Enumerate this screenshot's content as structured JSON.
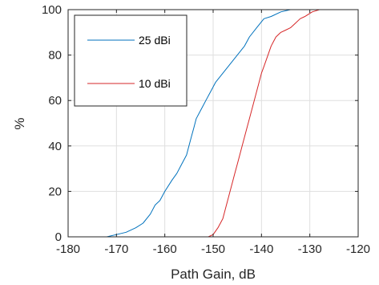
{
  "chart_data": {
    "type": "line",
    "title": "",
    "xlabel": "Path Gain, dB",
    "ylabel": "%",
    "xlim": [
      -180,
      -120
    ],
    "ylim": [
      0,
      100
    ],
    "xticks": [
      -180,
      -170,
      -160,
      -150,
      -140,
      -130,
      -120
    ],
    "yticks": [
      0,
      20,
      40,
      60,
      80,
      100
    ],
    "grid": true,
    "legend_position": "top-left",
    "series": [
      {
        "name": "25 dBi",
        "color": "#0072BD",
        "x": [
          -172,
          -170,
          -168,
          -166,
          -164.5,
          -163,
          -162,
          -161,
          -160,
          -158.5,
          -157.5,
          -156.5,
          -155.5,
          -155,
          -154.5,
          -154,
          -153.5,
          -152.5,
          -151.5,
          -150.5,
          -149.5,
          -148,
          -146.5,
          -145,
          -143.5,
          -142.5,
          -141,
          -139.5,
          -138,
          -136,
          -134,
          -132
        ],
        "y": [
          0,
          1,
          2,
          4,
          6,
          10,
          14,
          16,
          20,
          25,
          28,
          32,
          36,
          40,
          44,
          48,
          52,
          56,
          60,
          64,
          68,
          72,
          76,
          80,
          84,
          88,
          92,
          96,
          97,
          99,
          100,
          100
        ]
      },
      {
        "name": "10 dBi",
        "color": "#D62728",
        "x": [
          -151,
          -150,
          -149,
          -148,
          -147.5,
          -147,
          -146.5,
          -146,
          -145.5,
          -145,
          -144.5,
          -144,
          -143.5,
          -143,
          -142.5,
          -142,
          -141.5,
          -141,
          -140.5,
          -140,
          -139.5,
          -139,
          -138.5,
          -138,
          -137.5,
          -137,
          -136,
          -135,
          -134,
          -133,
          -132,
          -131,
          -129.5,
          -128,
          -127
        ],
        "y": [
          0,
          1,
          4,
          8,
          12,
          16,
          20,
          24,
          28,
          32,
          36,
          40,
          44,
          48,
          52,
          56,
          60,
          64,
          68,
          72,
          75,
          78,
          81,
          84,
          86,
          88,
          90,
          91,
          92,
          94,
          96,
          97,
          99,
          100,
          100
        ]
      }
    ]
  }
}
